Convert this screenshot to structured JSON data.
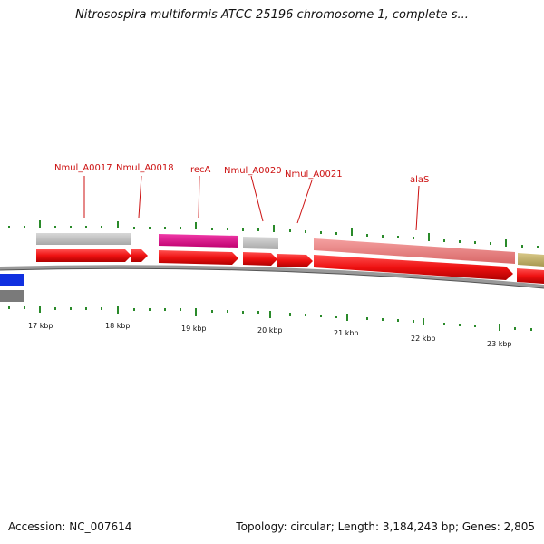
{
  "title": "Nitrosospira multiformis ATCC 25196 chromosome 1, complete s...",
  "footer": {
    "accession": "Accession: NC_007614",
    "stats": "Topology: circular; Length: 3,184,243 bp; Genes: 2,805"
  },
  "scale_labels": [
    "17 kbp",
    "18 kbp",
    "19 kbp",
    "20 kbp",
    "21 kbp",
    "22 kbp",
    "23 kbp"
  ],
  "gene_labels": [
    "Nmul_A0017",
    "Nmul_A0018",
    "recA",
    "Nmul_A0020",
    "Nmul_A0021",
    "alaS"
  ],
  "colors": {
    "cds": "#ee1111",
    "gene": "#c8c8c8",
    "recA_feature": "#e8158f",
    "alaS_feature": "#f08080",
    "olive_feature": "#c8b870",
    "blue_feature": "#1030e0",
    "backbone": "#888888",
    "tick": "#2a8a2a",
    "label": "#cc1111"
  }
}
